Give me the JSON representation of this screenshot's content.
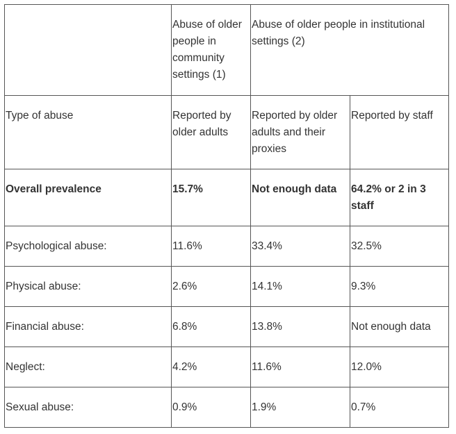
{
  "table": {
    "header_top": {
      "col2": "Abuse of older people in community settings (1)",
      "col3": "Abuse of older people in institutional settings (2)"
    },
    "header_sub": {
      "col1": "Type of abuse",
      "col2": "Reported by older adults",
      "col3": "Reported by older adults and their proxies",
      "col4": "Reported by staff"
    },
    "rows": [
      {
        "label": "Overall prevalence",
        "c2": "15.7%",
        "c3": "Not enough data",
        "c4": "64.2% or 2 in 3 staff"
      },
      {
        "label": "Psychological abuse:",
        "c2": "11.6%",
        "c3": "33.4%",
        "c4": "32.5%"
      },
      {
        "label": "Physical abuse:",
        "c2": "2.6%",
        "c3": "14.1%",
        "c4": "9.3%"
      },
      {
        "label": "Financial abuse:",
        "c2": "6.8%",
        "c3": "13.8%",
        "c4": "Not enough data"
      },
      {
        "label": "Neglect:",
        "c2": "4.2%",
        "c3": "11.6%",
        "c4": "12.0%"
      },
      {
        "label": "Sexual abuse:",
        "c2": "0.9%",
        "c3": "1.9%",
        "c4": "0.7%"
      }
    ]
  }
}
